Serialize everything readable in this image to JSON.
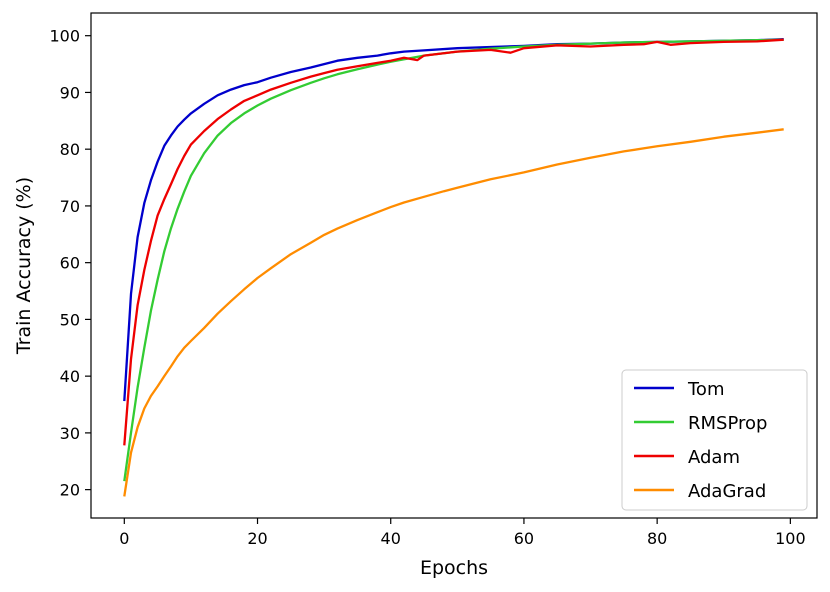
{
  "chart_data": {
    "type": "line",
    "title": "",
    "xlabel": "Epochs",
    "ylabel": "Train Accuracy (%)",
    "xlim": [
      -5,
      104
    ],
    "ylim": [
      15,
      104
    ],
    "xticks": [
      0,
      20,
      40,
      60,
      80,
      100
    ],
    "yticks": [
      20,
      30,
      40,
      50,
      60,
      70,
      80,
      90,
      100
    ],
    "grid": false,
    "legend_position": "bottom-right",
    "series": [
      {
        "name": "Tom",
        "color": "#0000cc",
        "x": [
          0,
          1,
          2,
          3,
          4,
          5,
          6,
          7,
          8,
          9,
          10,
          12,
          14,
          16,
          18,
          20,
          22,
          25,
          28,
          30,
          32,
          35,
          38,
          40,
          42,
          45,
          50,
          55,
          60,
          65,
          70,
          75,
          80,
          85,
          90,
          95,
          99
        ],
        "y": [
          35.6,
          54.5,
          64.5,
          70.5,
          74.5,
          77.8,
          80.6,
          82.4,
          84,
          85.2,
          86.3,
          88,
          89.5,
          90.5,
          91.3,
          91.8,
          92.6,
          93.6,
          94.4,
          95,
          95.6,
          96.1,
          96.5,
          96.9,
          97.2,
          97.4,
          97.8,
          98,
          98.2,
          98.5,
          98.6,
          98.8,
          98.9,
          99,
          99.1,
          99.2,
          99.4
        ]
      },
      {
        "name": "RMSProp",
        "color": "#33cc33",
        "x": [
          0,
          1,
          2,
          3,
          4,
          5,
          6,
          7,
          8,
          9,
          10,
          12,
          14,
          16,
          18,
          20,
          22,
          25,
          28,
          30,
          32,
          35,
          38,
          40,
          45,
          50,
          55,
          60,
          65,
          70,
          75,
          80,
          85,
          90,
          95,
          99
        ],
        "y": [
          21.5,
          30,
          38,
          45,
          51.5,
          57,
          62,
          66,
          69.5,
          72.5,
          75.3,
          79.3,
          82.4,
          84.6,
          86.3,
          87.7,
          88.9,
          90.4,
          91.7,
          92.5,
          93.2,
          94.1,
          94.9,
          95.4,
          96.5,
          97.2,
          97.7,
          98.1,
          98.4,
          98.6,
          98.8,
          98.9,
          99,
          99.1,
          99.2,
          99.3
        ]
      },
      {
        "name": "Adam",
        "color": "#ee0000",
        "x": [
          0,
          1,
          2,
          3,
          4,
          5,
          6,
          7,
          8,
          9,
          10,
          12,
          14,
          16,
          18,
          20,
          22,
          25,
          28,
          30,
          32,
          35,
          38,
          40,
          42,
          44,
          45,
          50,
          55,
          58,
          60,
          65,
          70,
          75,
          78,
          80,
          82,
          85,
          90,
          95,
          99
        ],
        "y": [
          27.8,
          43,
          52.5,
          58.7,
          63.8,
          68.3,
          71.2,
          73.8,
          76.5,
          78.8,
          80.8,
          83.2,
          85.3,
          87,
          88.5,
          89.5,
          90.5,
          91.7,
          92.8,
          93.4,
          94,
          94.6,
          95.2,
          95.6,
          96.1,
          95.7,
          96.5,
          97.2,
          97.5,
          97,
          97.8,
          98.3,
          98.1,
          98.4,
          98.5,
          98.9,
          98.4,
          98.7,
          98.9,
          99,
          99.3
        ]
      },
      {
        "name": "AdaGrad",
        "color": "#ff8c00",
        "x": [
          0,
          1,
          2,
          3,
          4,
          5,
          6,
          7,
          8,
          9,
          10,
          12,
          14,
          16,
          18,
          20,
          22,
          25,
          28,
          30,
          32,
          35,
          38,
          40,
          42,
          45,
          48,
          50,
          55,
          60,
          65,
          70,
          75,
          80,
          85,
          90,
          95,
          99
        ],
        "y": [
          18.8,
          26.5,
          31,
          34.3,
          36.5,
          38.2,
          40,
          41.7,
          43.5,
          45,
          46.2,
          48.5,
          51,
          53.2,
          55.3,
          57.3,
          59,
          61.5,
          63.5,
          64.9,
          66,
          67.5,
          68.9,
          69.8,
          70.6,
          71.6,
          72.6,
          73.2,
          74.7,
          75.9,
          77.3,
          78.5,
          79.6,
          80.5,
          81.3,
          82.2,
          82.9,
          83.5
        ]
      }
    ]
  }
}
